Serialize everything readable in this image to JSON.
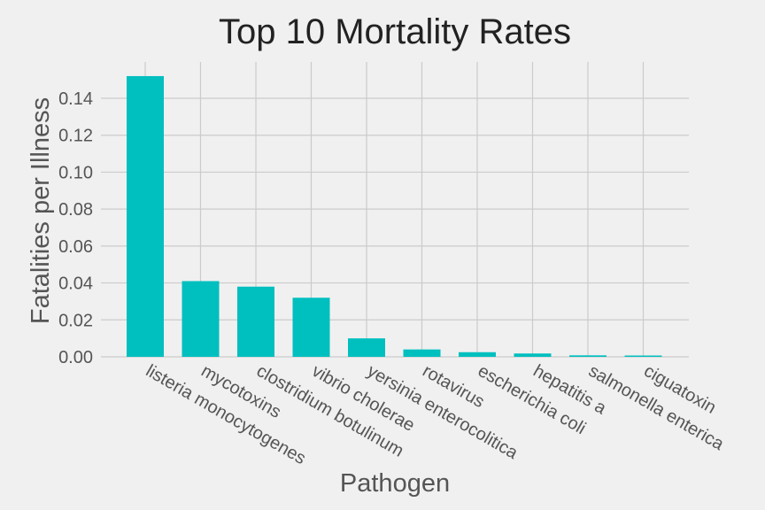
{
  "chart_data": {
    "type": "bar",
    "title": "Top 10 Mortality Rates",
    "xlabel": "Pathogen",
    "ylabel": "Fatalities per Illness",
    "categories": [
      "listeria monocytogenes",
      "mycotoxins",
      "clostridium botulinum",
      "vibrio cholerae",
      "yersinia enterocolitica",
      "rotavirus",
      "escherichia coli",
      "hepatitis a",
      "salmonella enterica",
      "ciguatoxin"
    ],
    "values": [
      0.152,
      0.041,
      0.038,
      0.032,
      0.01,
      0.004,
      0.0025,
      0.0018,
      0.0008,
      0.0007
    ],
    "ylim": [
      0,
      0.152
    ],
    "yticks": [
      "0.00",
      "0.02",
      "0.04",
      "0.06",
      "0.08",
      "0.10",
      "0.12",
      "0.14"
    ],
    "grid": true,
    "bar_color": "#00bfbf"
  }
}
